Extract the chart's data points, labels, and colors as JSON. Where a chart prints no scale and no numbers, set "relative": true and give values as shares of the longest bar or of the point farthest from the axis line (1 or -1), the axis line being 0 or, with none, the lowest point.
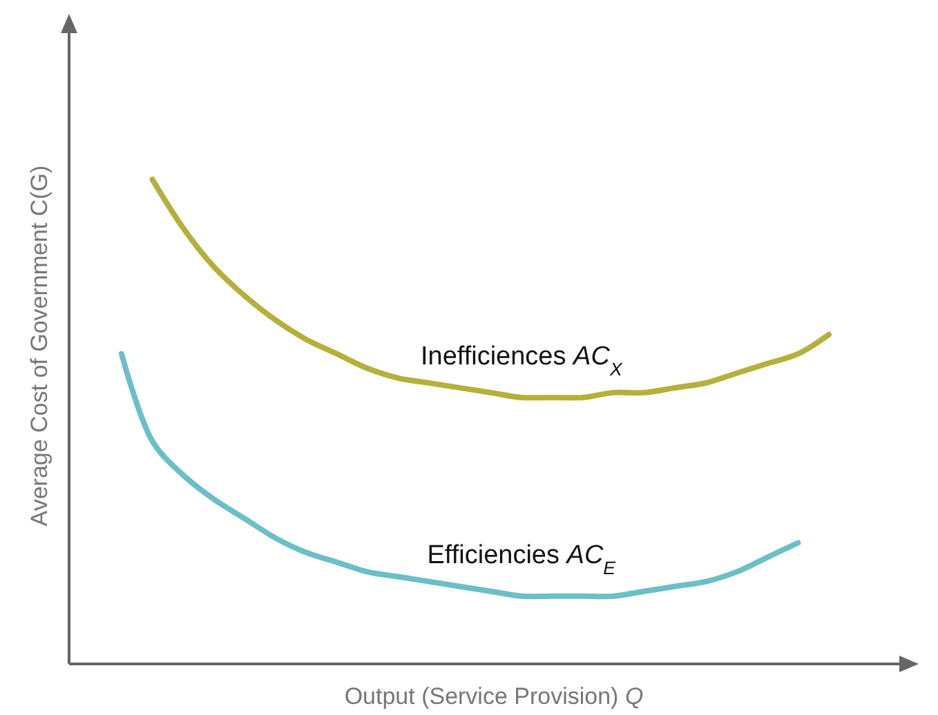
{
  "chart_data": {
    "type": "line",
    "relative": true,
    "xlabel": "Output (Service Provision) Q",
    "ylabel": "Average Cost of Government C(G)",
    "legend": false,
    "grid": false,
    "marker": "none",
    "line_style": "solid",
    "categories": [
      null,
      null,
      null,
      null,
      null,
      null,
      null,
      null,
      null,
      null,
      null,
      null,
      null,
      null,
      null,
      null,
      null,
      null,
      null,
      null,
      null,
      null,
      null,
      null
    ],
    "series": [
      {
        "name": "Inefficiences AC$_{X}$",
        "color": "#b5b03a",
        "values": [
          null,
          1,
          0.9,
          0.82,
          0.76,
          0.71,
          0.67,
          0.64,
          0.61,
          0.59,
          0.58,
          0.57,
          0.56,
          0.55,
          0.55,
          0.55,
          0.56,
          0.56,
          0.57,
          0.58,
          0.6,
          0.62,
          0.64,
          0.68
        ]
      },
      {
        "name": "Efficiencies AC$_{E}$",
        "color": "#6bbfc6",
        "values": [
          0.64,
          0.46,
          0.39,
          0.34,
          0.3,
          0.26,
          0.23,
          0.21,
          0.19,
          0.18,
          0.17,
          0.16,
          0.15,
          0.14,
          0.14,
          0.14,
          0.14,
          0.15,
          0.16,
          0.17,
          0.19,
          0.22,
          0.25,
          null
        ]
      }
    ]
  }
}
